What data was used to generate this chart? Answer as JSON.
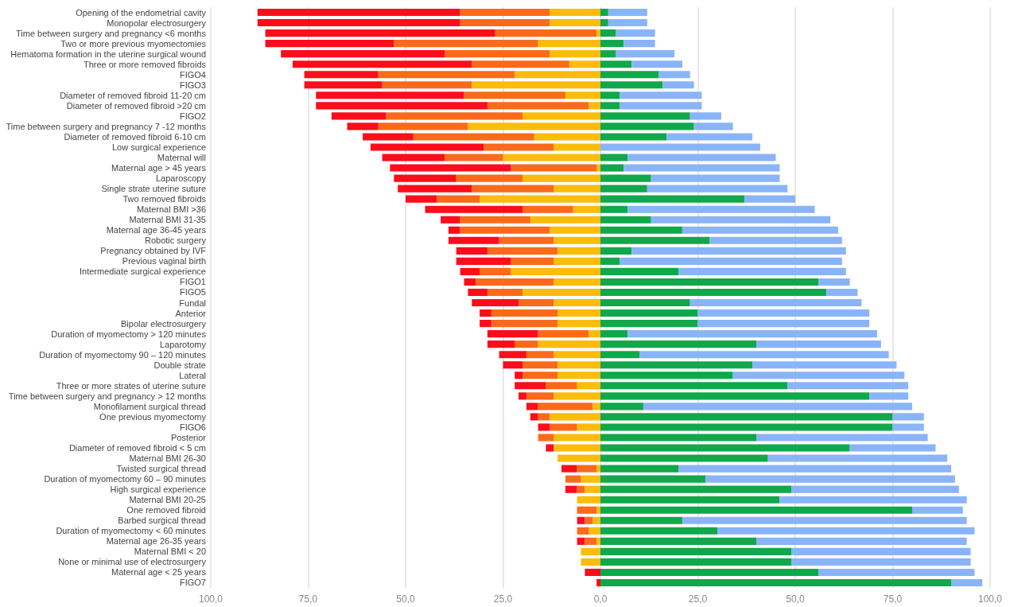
{
  "chart_data": {
    "type": "bar",
    "orientation": "horizontal",
    "stacked": true,
    "grid": "x",
    "categories": [
      "Opening of the endometrial cavity",
      "Monopolar electrosurgery",
      "Time between surgery and pregnancy <6 months",
      "Two or more previous myomectomies",
      "Hematoma formation in the uterine surgical wound",
      "Three or more removed fibroids",
      "FIGO4",
      "FIGO3",
      "Diameter of removed fibroid 11-20 cm",
      "Diameter of removed fibroid >20 cm",
      "FIGO2",
      "Time between surgery and pregnancy 7 -12 months",
      "Diameter of removed fibroid 6-10 cm",
      "Low surgical experience",
      "Maternal will",
      "Maternal age > 45 years",
      "Laparoscopy",
      "Single strate uterine suture",
      "Two removed fibroids",
      "Maternal BMI >36",
      "Maternal BMI 31-35",
      "Maternal age 36-45 years",
      "Robotic surgery",
      "Pregnancy obtained by IVF",
      "Previous vaginal birth",
      "Intermediate surgical experience",
      "FIGO1",
      "FIGO5",
      "Fundal",
      "Anterior",
      "Bipolar electrosurgery",
      "Duration of myomectomy > 120 minutes",
      "Laparotomy",
      "Duration of myomectomy 90 – 120 minutes",
      "Double strate",
      "Lateral",
      "Three or more strates of uterine suture",
      "Time between surgery and pregnancy > 12 months",
      "Monofilament surgical thread",
      "One previous myomectomy",
      "FIGO6",
      "Posterior",
      "Diameter of removed fibroid < 5 cm",
      "Maternal BMI 26-30",
      "Twisted surgical thread",
      "Duration of myomectomy 60 – 90 minutes",
      "High surgical experience",
      "Maternal BMI 20-25",
      "One removed fibroid",
      "Barbed surgical thread",
      "Duration of myomectomy < 60 minutes",
      "Maternal age 26-35 years",
      "Maternal BMI < 20",
      "None or minimal use of electrosurgery",
      "Maternal age < 25 years",
      "FIGO7"
    ],
    "xlim": [
      -100,
      100
    ],
    "xticks": [
      {
        "value": -100,
        "label": "100,0"
      },
      {
        "value": -75,
        "label": "75,0"
      },
      {
        "value": -50,
        "label": "50,0"
      },
      {
        "value": -25,
        "label": "25,0"
      },
      {
        "value": 0,
        "label": "0,0"
      },
      {
        "value": 25,
        "label": "25,0"
      },
      {
        "value": 50,
        "label": "50,0"
      },
      {
        "value": 75,
        "label": "75,0"
      },
      {
        "value": 100,
        "label": "100,0"
      }
    ],
    "series": [
      {
        "color": "#fbbc0c",
        "values": [
          -13,
          -13,
          -1,
          -16,
          -13,
          -8,
          -22,
          -33,
          -9,
          -3,
          -20,
          -34,
          -17,
          -12,
          -25,
          -1,
          -20,
          -12,
          -31,
          -7,
          -18,
          -13,
          -12,
          -11,
          -12,
          -23,
          -12,
          -20,
          -12,
          -11,
          -11,
          -3,
          -16,
          -12,
          -11,
          -11,
          -6,
          -12,
          -2,
          -13,
          -6,
          -12,
          -12,
          -11,
          -1,
          -5,
          -4,
          -6,
          -1,
          -2,
          -3,
          -1,
          -5,
          -5,
          null,
          null
        ]
      },
      {
        "color": "#fb6a1a",
        "values": [
          -23,
          -23,
          -26,
          -37,
          -27,
          -25,
          -35,
          -23,
          -26,
          -26,
          -35,
          -23,
          -31,
          -18,
          -15,
          -22,
          -17,
          -21,
          -11,
          -13,
          -18,
          -23,
          -14,
          -18,
          -11,
          -8,
          -20,
          -9,
          -9,
          -17,
          -17,
          -13,
          -6,
          -7,
          -9,
          -9,
          -8,
          -7,
          -14,
          -3,
          -7,
          -4,
          null,
          null,
          -5,
          -4,
          -2,
          null,
          -5,
          -2,
          -3,
          -3,
          null,
          null,
          null,
          null
        ]
      },
      {
        "color": "#fb0d1b",
        "values": [
          -52,
          -52,
          -59,
          -33,
          -42,
          -46,
          -19,
          -20,
          -38,
          -44,
          -14,
          -8,
          -13,
          -29,
          -16,
          -31,
          -16,
          -19,
          -8,
          -25,
          -5,
          -3,
          -13,
          -8,
          -14,
          -5,
          -3,
          -5,
          -12,
          -3,
          -3,
          -13,
          -7,
          -7,
          -5,
          -2,
          -8,
          -2,
          -3,
          -2,
          -3,
          null,
          -2,
          null,
          -4,
          null,
          -3,
          null,
          null,
          -2,
          null,
          -2,
          null,
          null,
          -4,
          -1
        ]
      },
      {
        "color": "#10a84a",
        "values": [
          2,
          2,
          4,
          6,
          4,
          8,
          15,
          16,
          5,
          5,
          23,
          24,
          17,
          null,
          7,
          6,
          13,
          12,
          37,
          7,
          13,
          21,
          28,
          8,
          5,
          20,
          56,
          58,
          23,
          25,
          25,
          7,
          40,
          10,
          39,
          34,
          48,
          69,
          11,
          75,
          75,
          40,
          64,
          43,
          20,
          27,
          49,
          46,
          80,
          21,
          30,
          40,
          49,
          49,
          56,
          90
        ]
      },
      {
        "color": "#8ab4f8",
        "values": [
          10,
          10,
          10,
          8,
          15,
          13,
          8,
          8,
          21,
          21,
          8,
          10,
          22,
          41,
          38,
          40,
          33,
          36,
          13,
          48,
          46,
          40,
          34,
          55,
          57,
          43,
          8,
          8,
          44,
          44,
          44,
          64,
          32,
          64,
          37,
          44,
          31,
          10,
          69,
          8,
          8,
          44,
          22,
          46,
          70,
          64,
          43,
          48,
          13,
          73,
          66,
          54,
          46,
          46,
          40,
          8
        ]
      }
    ]
  }
}
